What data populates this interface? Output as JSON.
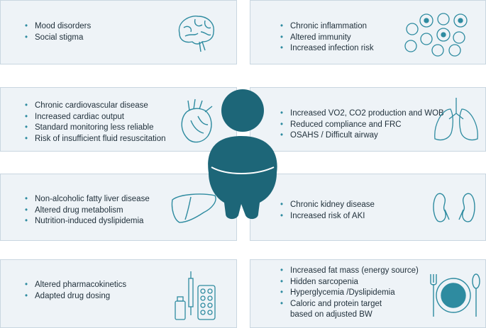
{
  "panels": {
    "brain": [
      "Mood disorders",
      "Social stigma"
    ],
    "immune": [
      "Chronic inflammation",
      "Altered immunity",
      "Increased infection risk"
    ],
    "heart": [
      "Chronic cardiovascular disease",
      "Increased cardiac output",
      "Standard monitoring less reliable",
      "Risk of insufficient  fluid resuscitation"
    ],
    "lungs": [
      "Increased VO2, CO2 production and WOB",
      "Reduced compliance and FRC",
      "OSAHS / Difficult airway"
    ],
    "liver": [
      "Non-alcoholic fatty liver disease",
      "Altered drug metabolism",
      "Nutrition-induced dyslipidemia"
    ],
    "kidney": [
      "Chronic kidney disease",
      "Increased risk of AKI"
    ],
    "pharma": [
      "Altered pharmacokinetics",
      "Adapted drug dosing"
    ],
    "nutrition": [
      "Increased fat mass (energy source)",
      "Hidden sarcopenia",
      "Hyperglycemia /Dyslipidemia",
      "Caloric and protein target",
      "based on adjusted BW"
    ]
  },
  "colors": {
    "figure": "#1d6678",
    "icon": "#2e8ba0",
    "panel": "#eef3f7"
  }
}
